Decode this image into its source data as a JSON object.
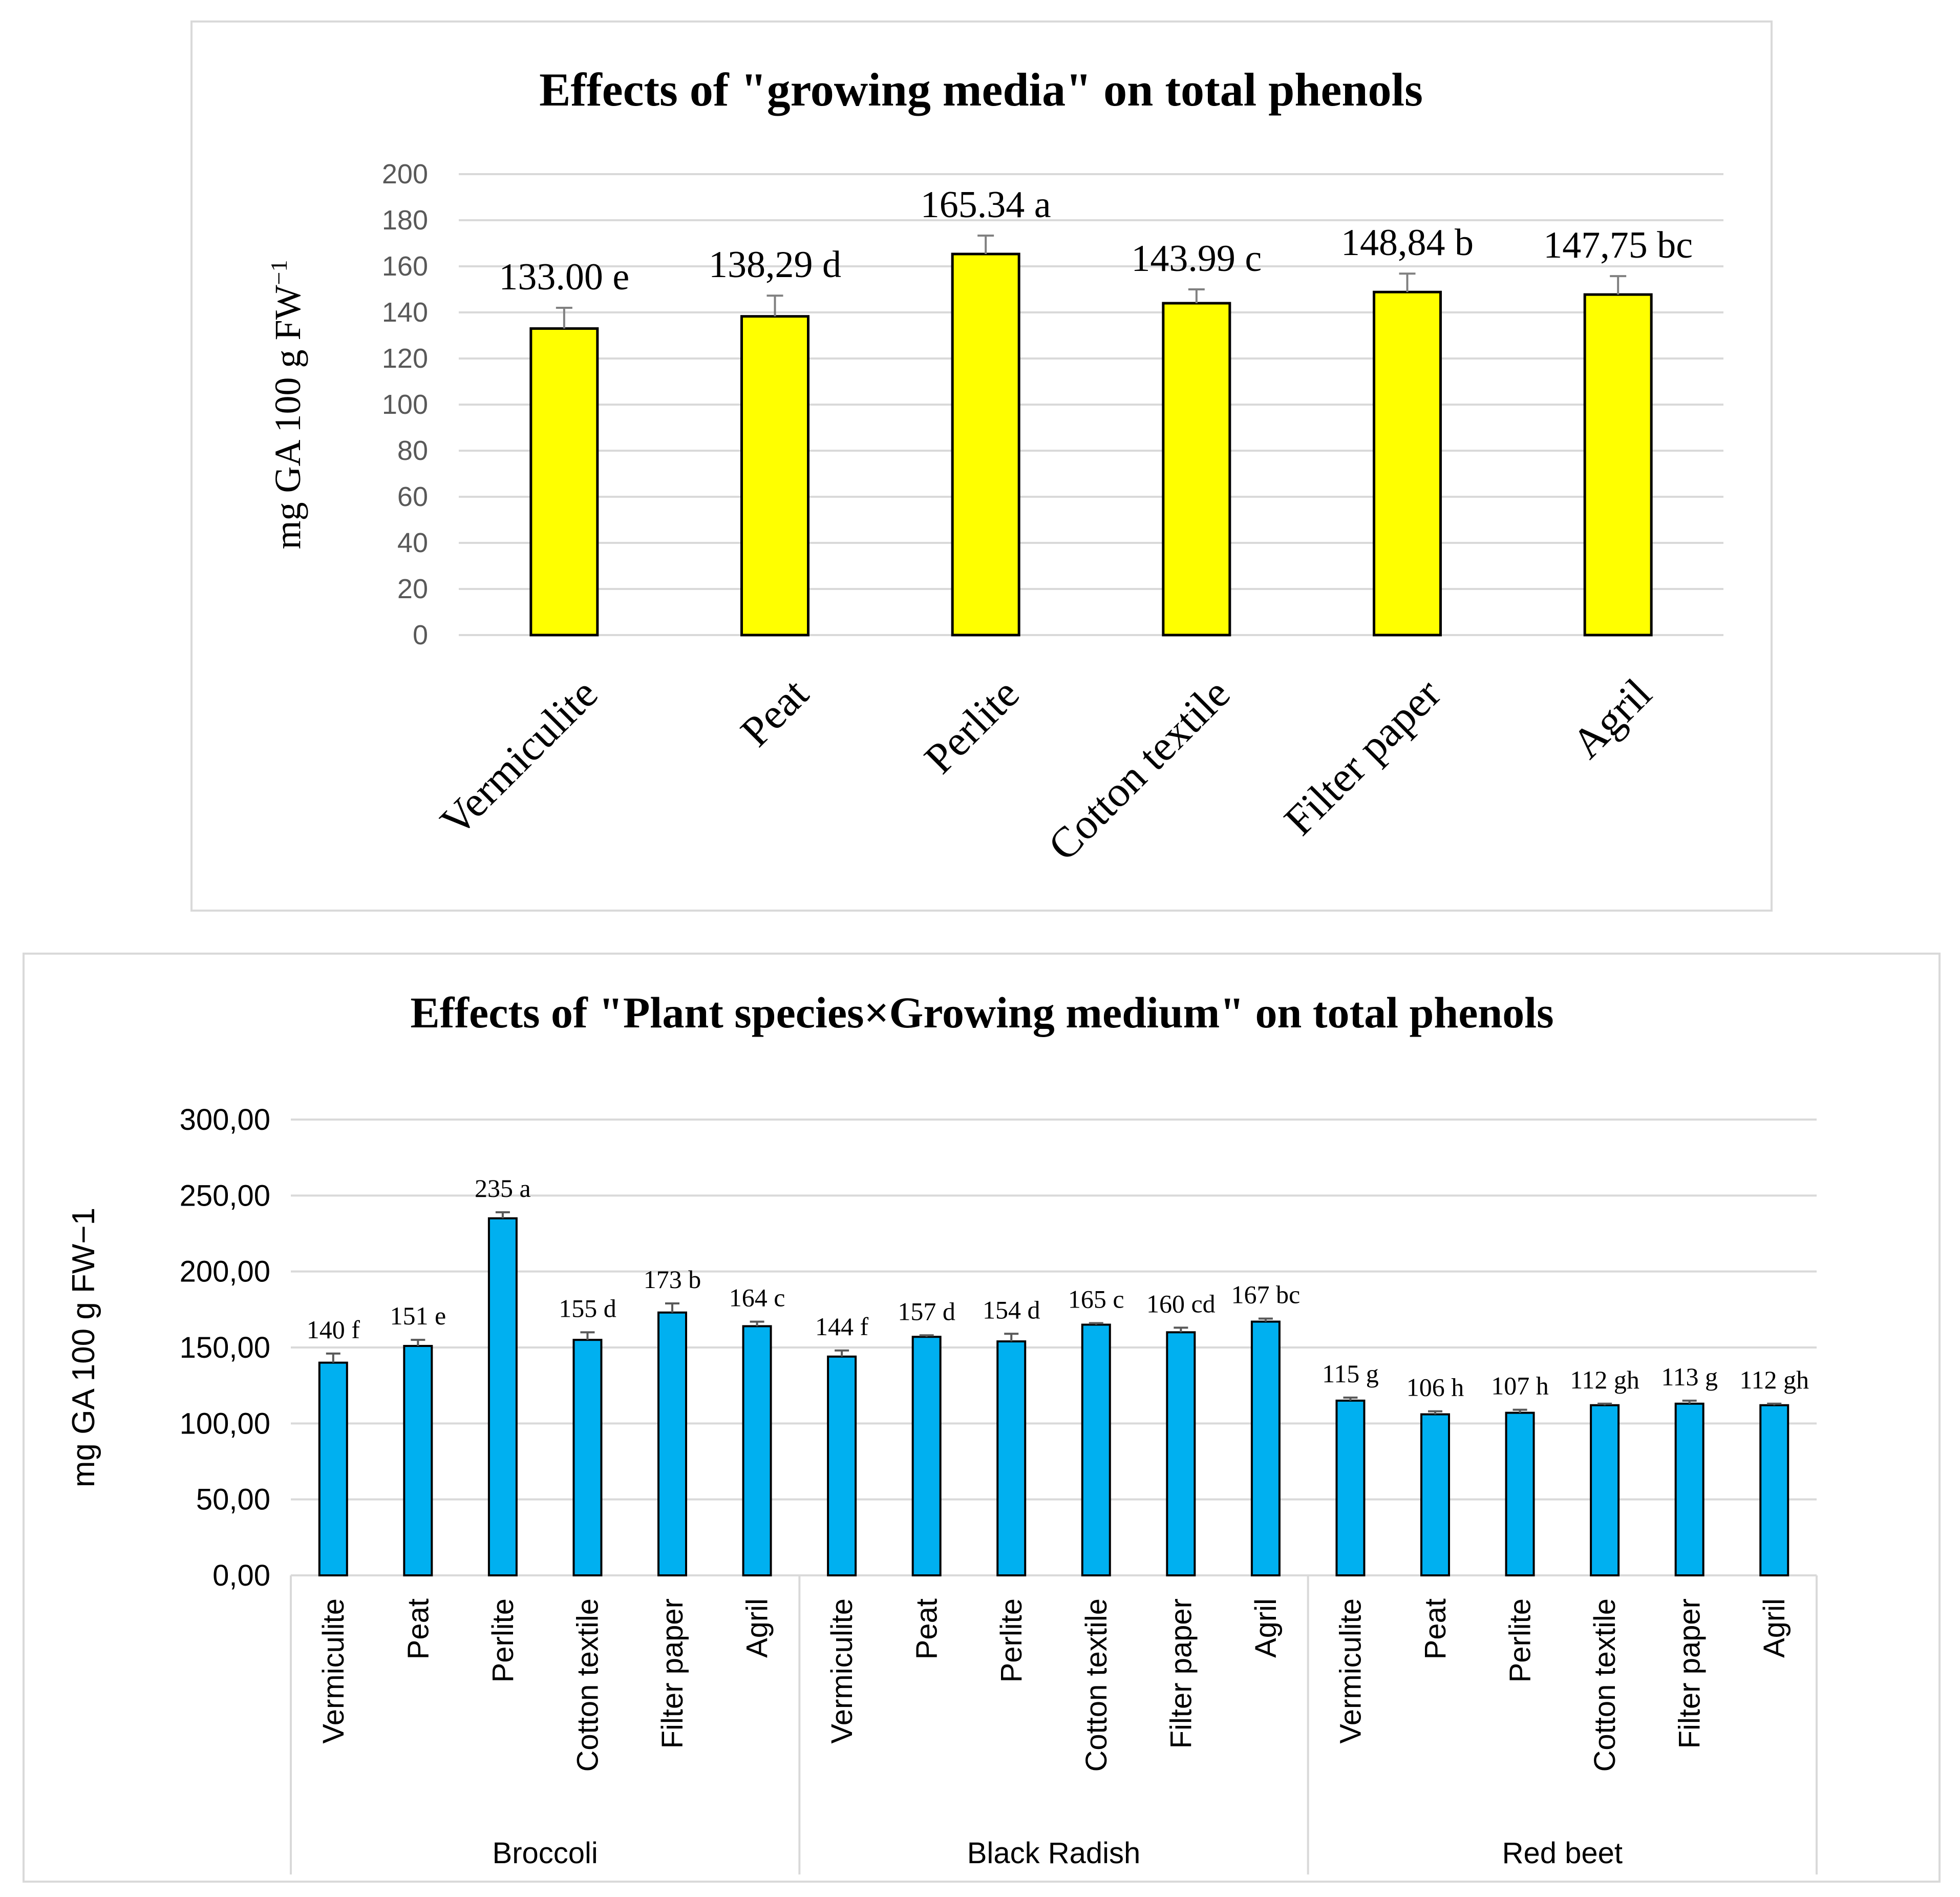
{
  "chart_data": [
    {
      "type": "bar",
      "title": "Effects of \"growing media\" on total phenols",
      "ylabel": "mg GA 100 g FW",
      "ylabel_sup": "−1",
      "ylim": [
        0,
        200
      ],
      "ytick_step": 20,
      "ytick_labels": [
        "0",
        "20",
        "40",
        "60",
        "80",
        "100",
        "120",
        "140",
        "160",
        "180",
        "200"
      ],
      "grid": true,
      "bar_color": "#ffff00",
      "error_color": "#808080",
      "categories": [
        "Vermiculite",
        "Peat",
        "Perlite",
        "Cotton textile",
        "Filter paper",
        "Agril"
      ],
      "values": [
        133.0,
        138.29,
        165.34,
        143.99,
        148.84,
        147.75
      ],
      "errors": [
        9,
        9,
        8,
        6,
        8,
        8
      ],
      "data_labels": [
        "133.00 e",
        "138,29  d",
        "165.34 a",
        "143.99 c",
        "148,84 b",
        "147,75 bc"
      ]
    },
    {
      "type": "bar",
      "title": "Effects of \"Plant species×Growing medium\" on total phenols",
      "ylabel": "mg GA 100 g FW−1",
      "ylim": [
        0,
        300
      ],
      "ytick_step": 50,
      "ytick_labels": [
        "0,00",
        "50,00",
        "100,00",
        "150,00",
        "200,00",
        "250,00",
        "300,00"
      ],
      "grid": true,
      "bar_color": "#00b0f0",
      "error_color": "#595959",
      "groups": [
        "Broccoli",
        "Black Radish",
        "Red beet"
      ],
      "categories": [
        "Vermiculite",
        "Peat",
        "Perlite",
        "Cotton textile",
        "Filter paper",
        "Agril"
      ],
      "series": [
        {
          "name": "Broccoli",
          "values": [
            140,
            151,
            235,
            155,
            173,
            164
          ],
          "errors": [
            6,
            4,
            4,
            5,
            6,
            3
          ],
          "data_labels": [
            "140 f",
            "151 e",
            "235 a",
            "155 d",
            "173 b",
            "164 c"
          ]
        },
        {
          "name": "Black Radish",
          "values": [
            144,
            157,
            154,
            165,
            160,
            167
          ],
          "errors": [
            4,
            1,
            5,
            1,
            3,
            2
          ],
          "data_labels": [
            "144 f",
            "157 d",
            "154 d",
            "165 c",
            "160 cd",
            "167 bc"
          ]
        },
        {
          "name": "Red beet",
          "values": [
            115,
            106,
            107,
            112,
            113,
            112
          ],
          "errors": [
            2,
            2,
            2,
            1,
            2,
            1
          ],
          "data_labels": [
            "115 g",
            "106 h",
            "107 h",
            "112 gh",
            "113 g",
            "112 gh"
          ]
        }
      ]
    }
  ]
}
